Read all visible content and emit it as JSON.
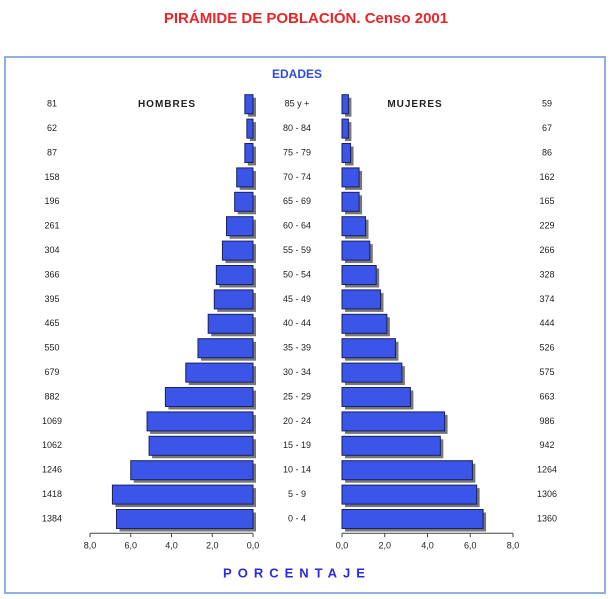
{
  "chart_data": {
    "type": "pyramid",
    "title": "PIRÁMIDE DE POBLACIÓN. Censo 2001",
    "y_label": "EDADES",
    "x_label": "PORCENTAJE",
    "categories": [
      "85 y +",
      "80 - 84",
      "75 - 79",
      "70 - 74",
      "65 - 69",
      "60 - 64",
      "55 - 59",
      "50 - 54",
      "45 - 49",
      "40 - 44",
      "35 - 39",
      "30 - 34",
      "25 - 29",
      "20 - 24",
      "15 - 19",
      "10 - 14",
      "5 - 9",
      "0 - 4"
    ],
    "series": [
      {
        "name": "HOMBRES",
        "color": "#3a55e8",
        "values": [
          0.4,
          0.3,
          0.4,
          0.8,
          0.9,
          1.3,
          1.5,
          1.8,
          1.9,
          2.2,
          2.7,
          3.3,
          4.3,
          5.2,
          5.1,
          6.0,
          6.9,
          6.7
        ],
        "counts": [
          81,
          62,
          87,
          158,
          196,
          261,
          304,
          366,
          395,
          465,
          550,
          679,
          882,
          1069,
          1062,
          1246,
          1418,
          1384
        ]
      },
      {
        "name": "MUJERES",
        "color": "#3a55e8",
        "values": [
          0.3,
          0.3,
          0.4,
          0.8,
          0.8,
          1.1,
          1.3,
          1.6,
          1.8,
          2.1,
          2.5,
          2.8,
          3.2,
          4.8,
          4.6,
          6.1,
          6.3,
          6.6
        ],
        "counts": [
          59,
          67,
          86,
          162,
          165,
          229,
          266,
          328,
          374,
          444,
          526,
          575,
          663,
          986,
          942,
          1264,
          1306,
          1360
        ]
      }
    ],
    "xlim_left": [
      8,
      0
    ],
    "xticks_left": [
      {
        "value": 8,
        "label": "8,0"
      },
      {
        "value": 6,
        "label": "6,0"
      },
      {
        "value": 4,
        "label": "4,0"
      },
      {
        "value": 2,
        "label": "2,0"
      },
      {
        "value": 0,
        "label": "0,0"
      }
    ],
    "xlim_right": [
      0,
      8
    ],
    "xticks_right": [
      {
        "value": 0,
        "label": "0,0"
      },
      {
        "value": 2,
        "label": "2,0"
      },
      {
        "value": 4,
        "label": "4,0"
      },
      {
        "value": 6,
        "label": "6,0"
      },
      {
        "value": 8,
        "label": "8,0"
      }
    ]
  }
}
